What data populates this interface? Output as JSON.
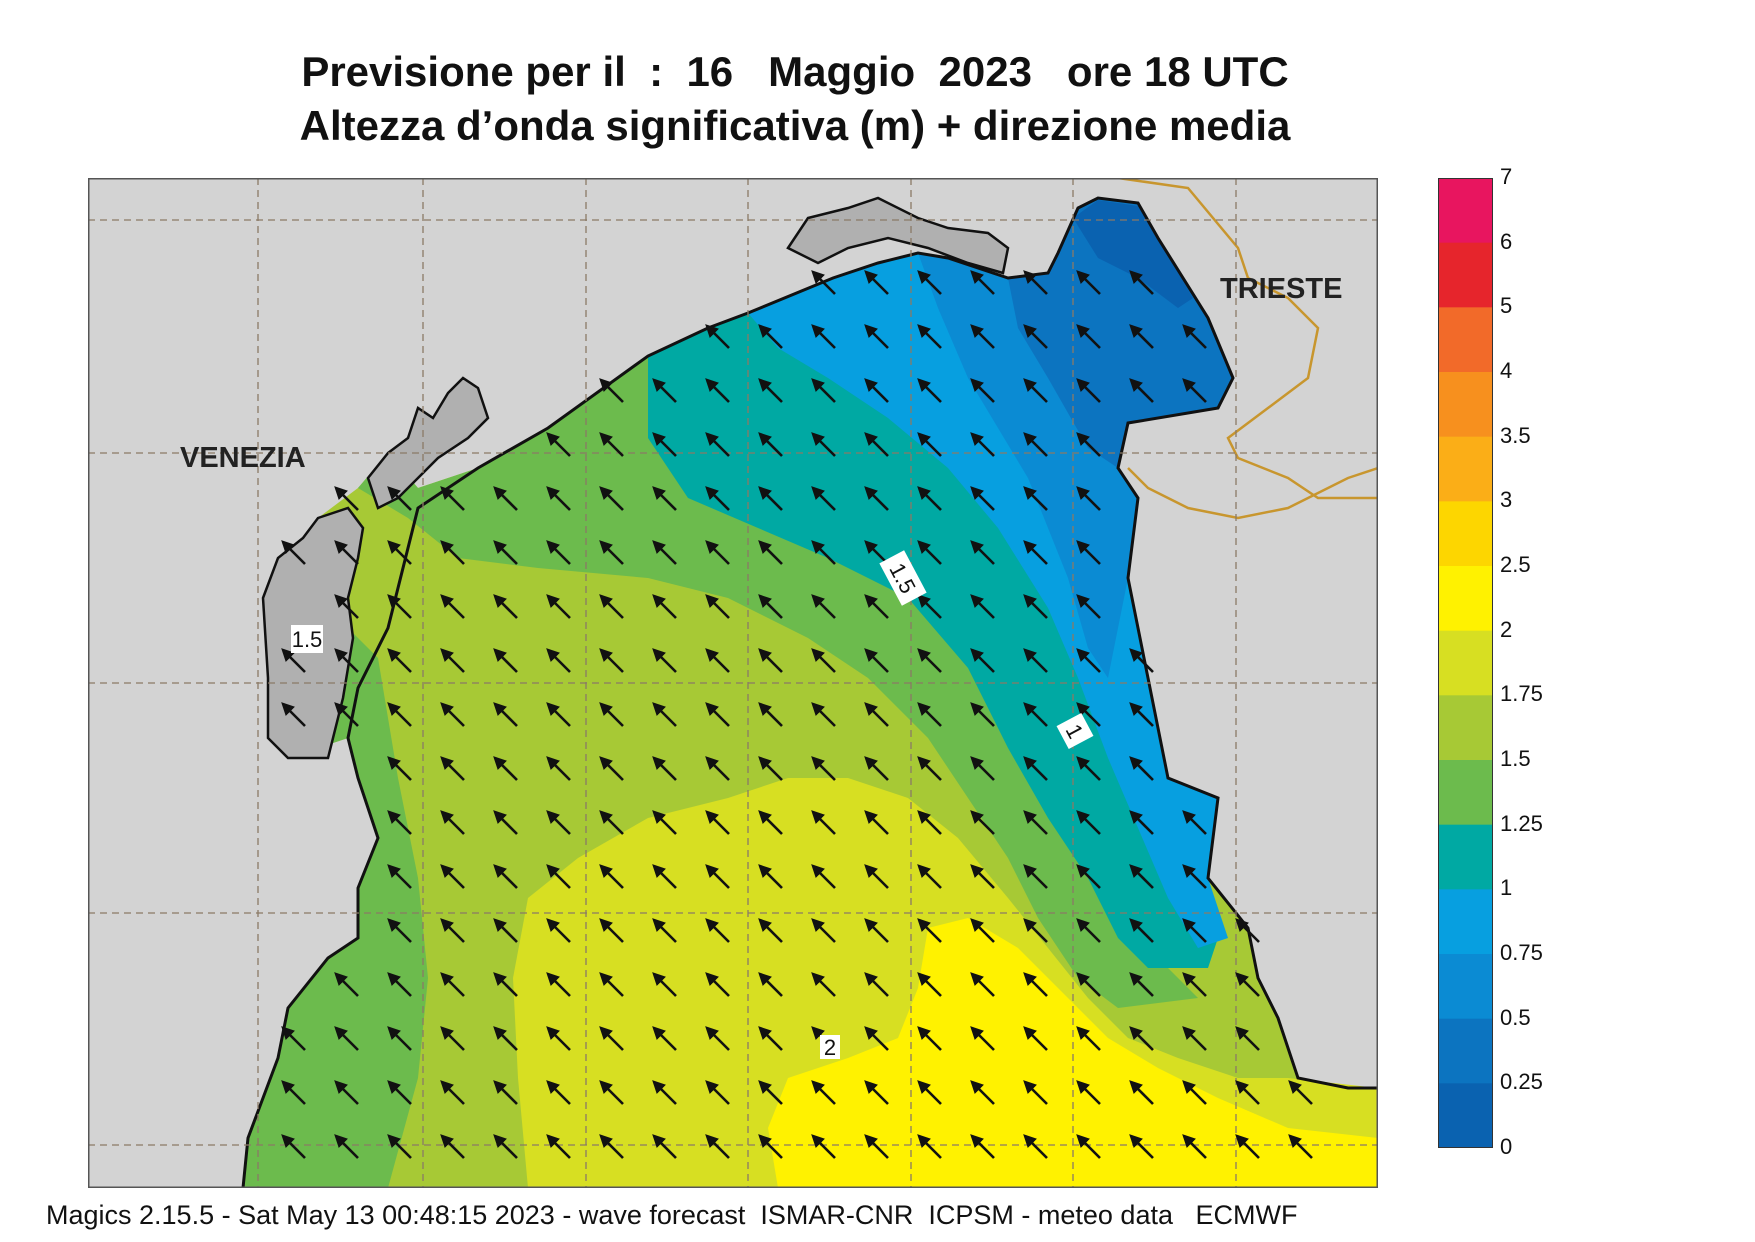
{
  "header": {
    "title_line1": "Previsione per il  :  16   Maggio  2023   ore 18 UTC",
    "title_line2": "Altezza d’onda significativa (m) + direzione media"
  },
  "map": {
    "place_labels": {
      "venezia": "VENEZIA",
      "trieste": "TRIESTE"
    },
    "contour_labels": {
      "c15_west": "1.5",
      "c15_mid": "1.5",
      "c1": "1",
      "c2": "2"
    },
    "colors": {
      "land": "#d3d3d3",
      "c_0_25": "#0a62b0",
      "c_25_05": "#0c74c0",
      "c_05_075": "#0b8bd3",
      "c_075_1": "#079fe0",
      "c_1_125": "#00a9a3",
      "c_125_15": "#6cbb4d",
      "c_15_175": "#a7c935",
      "c_175_2": "#d7df22",
      "c_2_25": "#fff200"
    },
    "wave_direction": "north-west"
  },
  "legend": {
    "ticks": [
      "7",
      "6",
      "5",
      "4",
      "3.5",
      "3",
      "2.5",
      "2",
      "1.75",
      "1.5",
      "1.25",
      "1",
      "0.75",
      "0.5",
      "0.25",
      "0"
    ],
    "colors": [
      "#e8155f",
      "#e6252c",
      "#f26a29",
      "#f7901e",
      "#fbae17",
      "#fdd600",
      "#fff200",
      "#d7df22",
      "#a7c935",
      "#6cbb4d",
      "#00a9a3",
      "#079fe0",
      "#0b8bd3",
      "#0c74c0",
      "#0a62b0"
    ]
  },
  "footer": {
    "text": "Magics 2.15.5 - Sat May 13 00:48:15 2023 - wave forecast  ISMAR-CNR  ICPSM - meteo data   ECMWF"
  }
}
